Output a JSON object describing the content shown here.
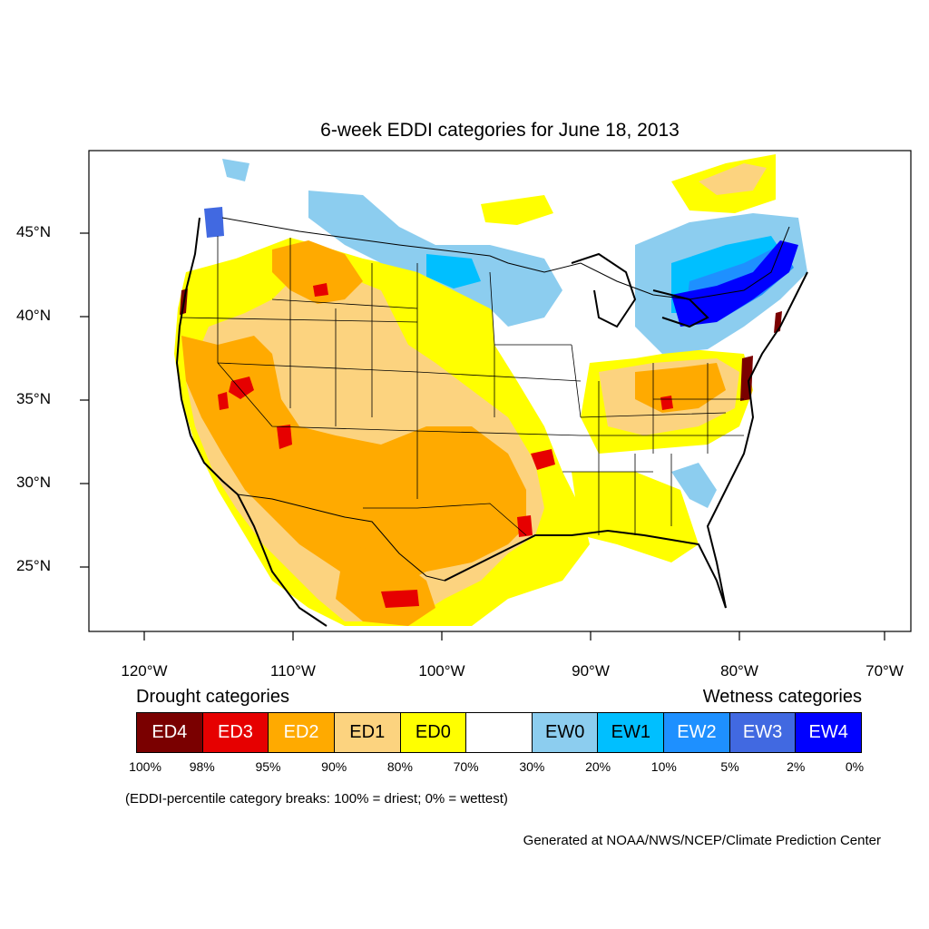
{
  "title": "6-week EDDI categories for June 18, 2013",
  "lat_labels": [
    "45°N",
    "40°N",
    "35°N",
    "30°N",
    "25°N"
  ],
  "lon_labels": [
    "120°W",
    "110°W",
    "100°W",
    "90°W",
    "80°W",
    "70°W"
  ],
  "legend": {
    "drought_heading": "Drought categories",
    "wetness_heading": "Wetness categories",
    "categories": [
      {
        "label": "ED4",
        "color": "#7a0000",
        "text_color": "#ffffff"
      },
      {
        "label": "ED3",
        "color": "#e60000",
        "text_color": "#ffffff"
      },
      {
        "label": "ED2",
        "color": "#ffaa00",
        "text_color": "#ffffff"
      },
      {
        "label": "ED1",
        "color": "#fcd37f",
        "text_color": "#000000"
      },
      {
        "label": "ED0",
        "color": "#ffff00",
        "text_color": "#000000"
      },
      {
        "label": "",
        "color": "#ffffff",
        "text_color": "#000000"
      },
      {
        "label": "EW0",
        "color": "#8ccdef",
        "text_color": "#000000"
      },
      {
        "label": "EW1",
        "color": "#00bfff",
        "text_color": "#000000"
      },
      {
        "label": "EW2",
        "color": "#1e90ff",
        "text_color": "#ffffff"
      },
      {
        "label": "EW3",
        "color": "#4169e1",
        "text_color": "#ffffff"
      },
      {
        "label": "EW4",
        "color": "#0000ff",
        "text_color": "#ffffff"
      }
    ],
    "breaks": [
      "100%",
      "98%",
      "95%",
      "90%",
      "80%",
      "70%",
      "30%",
      "20%",
      "10%",
      "5%",
      "2%",
      "0%"
    ]
  },
  "note": "(EDDI-percentile category breaks: 100% = driest; 0% = wettest)",
  "credit": "Generated at NOAA/NWS/NCEP/Climate Prediction Center"
}
